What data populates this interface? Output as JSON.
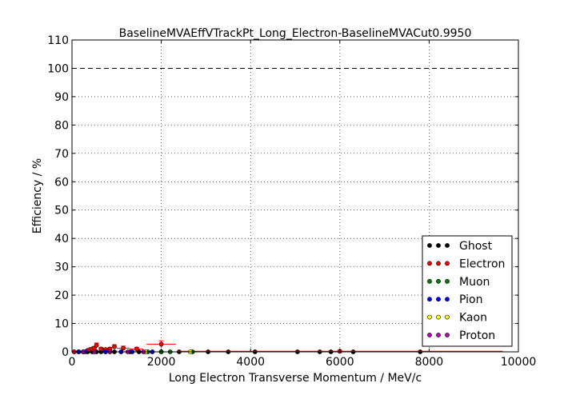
{
  "chart_data": {
    "type": "scatter",
    "title": "BaselineMVAEffVTrackPt_Long_Electron-BaselineMVACut0.9950",
    "xlabel": "Long Electron Transverse Momentum / MeV/c",
    "ylabel": "Efficiency / %",
    "xlim": [
      0,
      10000
    ],
    "ylim": [
      0,
      110
    ],
    "xticks": [
      0,
      2000,
      4000,
      6000,
      8000,
      10000
    ],
    "yticks": [
      0,
      10,
      20,
      30,
      40,
      50,
      60,
      70,
      80,
      90,
      100,
      110
    ],
    "grid": true,
    "reference_line": {
      "y": 100,
      "style": "dashed"
    },
    "legend_position": "lower right",
    "series": [
      {
        "name": "Ghost",
        "color": "#000000",
        "points": [
          {
            "x": 50,
            "y": 0
          },
          {
            "x": 150,
            "y": 0
          },
          {
            "x": 250,
            "y": 0
          },
          {
            "x": 350,
            "y": 0
          },
          {
            "x": 450,
            "y": 0
          },
          {
            "x": 550,
            "y": 0
          },
          {
            "x": 650,
            "y": 0
          },
          {
            "x": 750,
            "y": 0
          },
          {
            "x": 850,
            "y": 0
          },
          {
            "x": 950,
            "y": 0
          },
          {
            "x": 1100,
            "y": 0
          },
          {
            "x": 1300,
            "y": 0
          },
          {
            "x": 1500,
            "y": 0
          },
          {
            "x": 2000,
            "y": 0
          },
          {
            "x": 2400,
            "y": 0
          },
          {
            "x": 3050,
            "y": 0
          },
          {
            "x": 3500,
            "y": 0
          },
          {
            "x": 4100,
            "y": 0
          },
          {
            "x": 5050,
            "y": 0
          },
          {
            "x": 5550,
            "y": 0
          },
          {
            "x": 5800,
            "y": 0
          },
          {
            "x": 6300,
            "y": 0
          },
          {
            "x": 7800,
            "y": 0
          }
        ]
      },
      {
        "name": "Electron",
        "color": "#ff0000",
        "points": [
          {
            "x": 50,
            "y": 0,
            "xerr": 50
          },
          {
            "x": 150,
            "y": 0,
            "xerr": 50
          },
          {
            "x": 250,
            "y": 0,
            "xerr": 50
          },
          {
            "x": 350,
            "y": 0.5,
            "xerr": 50
          },
          {
            "x": 400,
            "y": 0.8,
            "xerr": 50
          },
          {
            "x": 450,
            "y": 1.0,
            "xerr": 50
          },
          {
            "x": 500,
            "y": 1.3,
            "xerr": 50,
            "yerr": 0.6
          },
          {
            "x": 550,
            "y": 2.3,
            "xerr": 50,
            "yerr": 0.8
          },
          {
            "x": 650,
            "y": 1.0,
            "xerr": 50,
            "yerr": 0.5
          },
          {
            "x": 750,
            "y": 0.8,
            "xerr": 50,
            "yerr": 0.5
          },
          {
            "x": 850,
            "y": 1.0,
            "xerr": 50,
            "yerr": 0.5
          },
          {
            "x": 950,
            "y": 1.8,
            "xerr": 50,
            "yerr": 0.7
          },
          {
            "x": 1150,
            "y": 1.3,
            "xerr": 150,
            "yerr": 0.7
          },
          {
            "x": 1450,
            "y": 1.0,
            "xerr": 150,
            "yerr": 0.6
          },
          {
            "x": 2000,
            "y": 2.7,
            "xerr": 330,
            "yerr": 1.2
          },
          {
            "x": 6000,
            "y": 0.2,
            "xerr": 3650
          }
        ]
      },
      {
        "name": "Muon",
        "color": "#008000",
        "points": [
          {
            "x": 1700,
            "y": 0
          },
          {
            "x": 2000,
            "y": 0
          },
          {
            "x": 2200,
            "y": 0
          },
          {
            "x": 2700,
            "y": 0
          }
        ]
      },
      {
        "name": "Pion",
        "color": "#0000ff",
        "points": [
          {
            "x": 150,
            "y": 0
          },
          {
            "x": 300,
            "y": 0
          },
          {
            "x": 750,
            "y": 0
          },
          {
            "x": 1100,
            "y": 0
          },
          {
            "x": 1350,
            "y": 0
          },
          {
            "x": 1800,
            "y": 0
          }
        ]
      },
      {
        "name": "Kaon",
        "color": "#ffff00",
        "points": [
          {
            "x": 1650,
            "y": 0
          },
          {
            "x": 2650,
            "y": 0
          }
        ]
      },
      {
        "name": "Proton",
        "color": "#bf00bf",
        "points": [
          {
            "x": 250,
            "y": 0
          },
          {
            "x": 500,
            "y": 0
          },
          {
            "x": 850,
            "y": 0
          },
          {
            "x": 1250,
            "y": 0
          },
          {
            "x": 1600,
            "y": 0
          }
        ]
      }
    ]
  }
}
